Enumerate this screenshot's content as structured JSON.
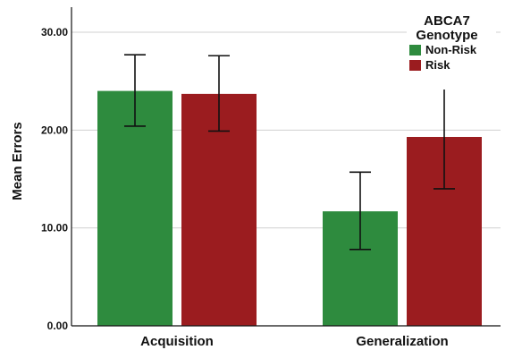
{
  "chart_data": {
    "type": "bar",
    "categories": [
      "Acquisition",
      "Generalization"
    ],
    "series": [
      {
        "name": "Non-Risk",
        "color": "#2e8b3e",
        "values": [
          24.0,
          11.7
        ],
        "error_low": [
          20.4,
          7.8
        ],
        "error_high": [
          27.7,
          15.7
        ]
      },
      {
        "name": "Risk",
        "color": "#9b1c1f",
        "values": [
          23.7,
          19.3
        ],
        "error_low": [
          19.9,
          14.0
        ],
        "error_high": [
          27.6,
          24.7
        ]
      }
    ],
    "ylabel": "Mean Errors",
    "xlabel": "",
    "ylim": [
      0,
      30
    ],
    "yticks": [
      "0.00",
      "10.00",
      "20.00",
      "30.00"
    ],
    "grid": true,
    "legend": {
      "title_lines": [
        "ABCA7",
        "Genotype"
      ],
      "placement": "top-right"
    }
  }
}
